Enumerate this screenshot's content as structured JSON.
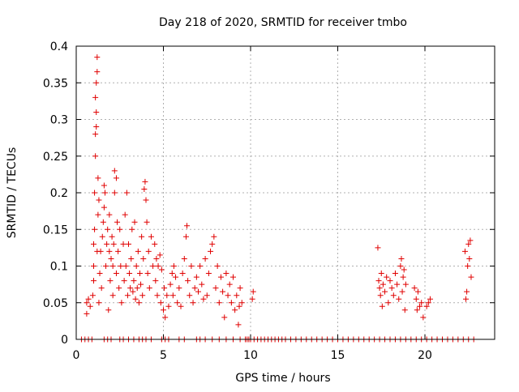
{
  "chart_data": {
    "type": "scatter",
    "title": "Day 218 of 2020, SRMTID for receiver tmbo",
    "xlabel": "GPS time / hours",
    "ylabel": "SRMTID / TECUs",
    "xlim": [
      0,
      24
    ],
    "ylim": [
      0,
      0.4
    ],
    "xticks": [
      0,
      5,
      10,
      15,
      20
    ],
    "xtick_labels": [
      "0",
      "5",
      "10",
      "15",
      "20"
    ],
    "yticks": [
      0,
      0.05,
      0.1,
      0.15,
      0.2,
      0.25,
      0.3,
      0.35,
      0.4
    ],
    "ytick_labels": [
      "0",
      "0.05",
      "0.1",
      "0.15",
      "0.2",
      "0.25",
      "0.3",
      "0.35",
      "0.4"
    ],
    "grid": true,
    "marker": "plus",
    "colors": {
      "marker": "#e00000",
      "grid": "#b0b0b0",
      "axis": "#000000"
    },
    "series": [
      {
        "name": "SRMTID",
        "points": [
          [
            0.3,
            0
          ],
          [
            0.5,
            0
          ],
          [
            0.7,
            0
          ],
          [
            0.9,
            0
          ],
          [
            0.6,
            0.035
          ],
          [
            0.6,
            0.05
          ],
          [
            0.7,
            0.055
          ],
          [
            0.8,
            0.045
          ],
          [
            0.95,
            0.06
          ],
          [
            1.0,
            0.08
          ],
          [
            1.0,
            0.1
          ],
          [
            1.0,
            0.13
          ],
          [
            1.05,
            0.15
          ],
          [
            1.05,
            0.2
          ],
          [
            1.1,
            0.25
          ],
          [
            1.1,
            0.28
          ],
          [
            1.15,
            0.29
          ],
          [
            1.15,
            0.31
          ],
          [
            1.1,
            0.33
          ],
          [
            1.15,
            0.35
          ],
          [
            1.2,
            0.365
          ],
          [
            1.2,
            0.385
          ],
          [
            1.2,
            0.12
          ],
          [
            1.25,
            0.17
          ],
          [
            1.25,
            0.22
          ],
          [
            1.3,
            0.19
          ],
          [
            1.3,
            0.05
          ],
          [
            1.35,
            0.09
          ],
          [
            1.4,
            0.12
          ],
          [
            1.45,
            0.07
          ],
          [
            1.5,
            0.14
          ],
          [
            1.55,
            0.16
          ],
          [
            1.6,
            0.18
          ],
          [
            1.6,
            0.21
          ],
          [
            1.65,
            0.2
          ],
          [
            1.7,
            0.1
          ],
          [
            1.75,
            0.13
          ],
          [
            1.8,
            0.15
          ],
          [
            1.85,
            0.04
          ],
          [
            1.9,
            0.12
          ],
          [
            1.9,
            0.17
          ],
          [
            1.95,
            0.08
          ],
          [
            2.0,
            0.11
          ],
          [
            2.05,
            0.14
          ],
          [
            2.1,
            0.06
          ],
          [
            2.1,
            0.1
          ],
          [
            2.15,
            0.13
          ],
          [
            2.2,
            0.2
          ],
          [
            2.2,
            0.23
          ],
          [
            2.3,
            0.22
          ],
          [
            2.3,
            0.09
          ],
          [
            2.35,
            0.16
          ],
          [
            2.4,
            0.12
          ],
          [
            2.45,
            0.07
          ],
          [
            2.5,
            0.15
          ],
          [
            2.55,
            0.1
          ],
          [
            2.6,
            0.05
          ],
          [
            2.7,
            0.13
          ],
          [
            2.75,
            0.08
          ],
          [
            2.8,
            0.17
          ],
          [
            2.85,
            0.1
          ],
          [
            2.9,
            0.2
          ],
          [
            2.95,
            0.06
          ],
          [
            3.0,
            0.13
          ],
          [
            3.05,
            0.09
          ],
          [
            3.1,
            0.07
          ],
          [
            3.15,
            0.11
          ],
          [
            3.2,
            0.15
          ],
          [
            3.25,
            0.065
          ],
          [
            3.3,
            0.08
          ],
          [
            3.35,
            0.16
          ],
          [
            3.4,
            0.055
          ],
          [
            3.45,
            0.1
          ],
          [
            3.5,
            0.07
          ],
          [
            3.55,
            0.12
          ],
          [
            3.6,
            0.05
          ],
          [
            3.65,
            0.09
          ],
          [
            3.7,
            0.075
          ],
          [
            3.75,
            0.14
          ],
          [
            3.8,
            0.06
          ],
          [
            3.85,
            0.11
          ],
          [
            3.9,
            0.205
          ],
          [
            3.95,
            0.215
          ],
          [
            4.0,
            0.19
          ],
          [
            4.05,
            0.16
          ],
          [
            4.1,
            0.09
          ],
          [
            4.15,
            0.12
          ],
          [
            4.2,
            0.07
          ],
          [
            4.3,
            0.14
          ],
          [
            4.4,
            0.1
          ],
          [
            4.5,
            0.13
          ],
          [
            4.55,
            0.08
          ],
          [
            4.6,
            0.11
          ],
          [
            4.65,
            0.06
          ],
          [
            4.7,
            0.1
          ],
          [
            4.8,
            0.115
          ],
          [
            4.85,
            0.05
          ],
          [
            4.9,
            0.095
          ],
          [
            5.0,
            0.04
          ],
          [
            5.05,
            0.07
          ],
          [
            5.1,
            0.03
          ],
          [
            5.2,
            0.06
          ],
          [
            5.3,
            0.045
          ],
          [
            5.4,
            0.075
          ],
          [
            5.5,
            0.09
          ],
          [
            5.55,
            0.06
          ],
          [
            5.6,
            0.1
          ],
          [
            5.7,
            0.085
          ],
          [
            5.8,
            0.05
          ],
          [
            5.9,
            0.07
          ],
          [
            6.0,
            0.045
          ],
          [
            6.1,
            0.09
          ],
          [
            6.2,
            0.11
          ],
          [
            6.3,
            0.14
          ],
          [
            6.35,
            0.155
          ],
          [
            6.4,
            0.08
          ],
          [
            6.5,
            0.06
          ],
          [
            6.6,
            0.1
          ],
          [
            6.7,
            0.05
          ],
          [
            6.8,
            0.07
          ],
          [
            6.9,
            0.085
          ],
          [
            7.0,
            0.065
          ],
          [
            7.1,
            0.1
          ],
          [
            7.2,
            0.075
          ],
          [
            7.3,
            0.055
          ],
          [
            7.4,
            0.11
          ],
          [
            7.5,
            0.06
          ],
          [
            7.6,
            0.09
          ],
          [
            7.7,
            0.12
          ],
          [
            7.8,
            0.13
          ],
          [
            7.9,
            0.14
          ],
          [
            8.0,
            0.07
          ],
          [
            8.1,
            0.1
          ],
          [
            8.2,
            0.05
          ],
          [
            8.3,
            0.085
          ],
          [
            8.4,
            0.065
          ],
          [
            8.5,
            0.03
          ],
          [
            8.6,
            0.09
          ],
          [
            8.7,
            0.06
          ],
          [
            8.8,
            0.075
          ],
          [
            8.9,
            0.05
          ],
          [
            9.0,
            0.085
          ],
          [
            9.1,
            0.04
          ],
          [
            9.2,
            0.06
          ],
          [
            9.3,
            0.02
          ],
          [
            9.35,
            0.045
          ],
          [
            9.4,
            0.07
          ],
          [
            9.5,
            0.05
          ],
          [
            10.1,
            0.055
          ],
          [
            10.15,
            0.065
          ],
          [
            1.6,
            0
          ],
          [
            1.8,
            0
          ],
          [
            2.0,
            0
          ],
          [
            2.5,
            0
          ],
          [
            2.7,
            0
          ],
          [
            3.0,
            0
          ],
          [
            3.3,
            0
          ],
          [
            3.6,
            0
          ],
          [
            3.8,
            0
          ],
          [
            4.0,
            0
          ],
          [
            4.3,
            0
          ],
          [
            4.9,
            0
          ],
          [
            5.1,
            0
          ],
          [
            5.3,
            0
          ],
          [
            5.9,
            0
          ],
          [
            6.2,
            0
          ],
          [
            6.9,
            0
          ],
          [
            7.1,
            0
          ],
          [
            7.4,
            0
          ],
          [
            7.8,
            0
          ],
          [
            8.2,
            0
          ],
          [
            8.6,
            0
          ],
          [
            9.0,
            0
          ],
          [
            9.4,
            0
          ],
          [
            9.7,
            0
          ],
          [
            9.8,
            0
          ],
          [
            9.9,
            0
          ],
          [
            10.0,
            0
          ],
          [
            10.2,
            0
          ],
          [
            10.4,
            0
          ],
          [
            10.6,
            0
          ],
          [
            10.8,
            0
          ],
          [
            11.0,
            0
          ],
          [
            11.2,
            0
          ],
          [
            11.4,
            0
          ],
          [
            11.6,
            0
          ],
          [
            11.8,
            0
          ],
          [
            12.0,
            0
          ],
          [
            12.3,
            0
          ],
          [
            12.6,
            0
          ],
          [
            12.9,
            0
          ],
          [
            13.2,
            0
          ],
          [
            13.5,
            0
          ],
          [
            13.8,
            0
          ],
          [
            14.1,
            0
          ],
          [
            14.4,
            0
          ],
          [
            14.7,
            0
          ],
          [
            15.0,
            0
          ],
          [
            15.3,
            0
          ],
          [
            15.6,
            0
          ],
          [
            15.9,
            0
          ],
          [
            16.2,
            0
          ],
          [
            16.5,
            0
          ],
          [
            16.8,
            0
          ],
          [
            17.1,
            0
          ],
          [
            17.4,
            0
          ],
          [
            17.7,
            0
          ],
          [
            18.0,
            0
          ],
          [
            18.3,
            0
          ],
          [
            18.6,
            0
          ],
          [
            18.9,
            0
          ],
          [
            19.2,
            0
          ],
          [
            19.5,
            0
          ],
          [
            19.8,
            0
          ],
          [
            20.1,
            0
          ],
          [
            20.4,
            0
          ],
          [
            20.7,
            0
          ],
          [
            21.0,
            0
          ],
          [
            21.3,
            0
          ],
          [
            21.6,
            0
          ],
          [
            21.9,
            0
          ],
          [
            22.2,
            0
          ],
          [
            22.5,
            0
          ],
          [
            22.8,
            0
          ],
          [
            17.3,
            0.125
          ],
          [
            17.35,
            0.08
          ],
          [
            17.4,
            0.07
          ],
          [
            17.45,
            0.06
          ],
          [
            17.5,
            0.09
          ],
          [
            17.55,
            0.045
          ],
          [
            17.6,
            0.075
          ],
          [
            17.7,
            0.065
          ],
          [
            17.8,
            0.085
          ],
          [
            17.9,
            0.05
          ],
          [
            18.0,
            0.08
          ],
          [
            18.1,
            0.07
          ],
          [
            18.2,
            0.06
          ],
          [
            18.3,
            0.09
          ],
          [
            18.4,
            0.075
          ],
          [
            18.5,
            0.055
          ],
          [
            18.6,
            0.1
          ],
          [
            18.65,
            0.11
          ],
          [
            18.7,
            0.065
          ],
          [
            18.75,
            0.085
          ],
          [
            18.8,
            0.095
          ],
          [
            18.85,
            0.04
          ],
          [
            18.9,
            0.075
          ],
          [
            19.4,
            0.07
          ],
          [
            19.5,
            0.055
          ],
          [
            19.55,
            0.04
          ],
          [
            19.6,
            0.065
          ],
          [
            19.7,
            0.045
          ],
          [
            19.8,
            0.05
          ],
          [
            19.9,
            0.03
          ],
          [
            20.1,
            0.045
          ],
          [
            20.2,
            0.05
          ],
          [
            20.3,
            0.055
          ],
          [
            22.3,
            0.12
          ],
          [
            22.35,
            0.055
          ],
          [
            22.4,
            0.065
          ],
          [
            22.45,
            0.1
          ],
          [
            22.5,
            0.13
          ],
          [
            22.55,
            0.11
          ],
          [
            22.6,
            0.135
          ],
          [
            22.65,
            0.085
          ]
        ]
      }
    ]
  }
}
